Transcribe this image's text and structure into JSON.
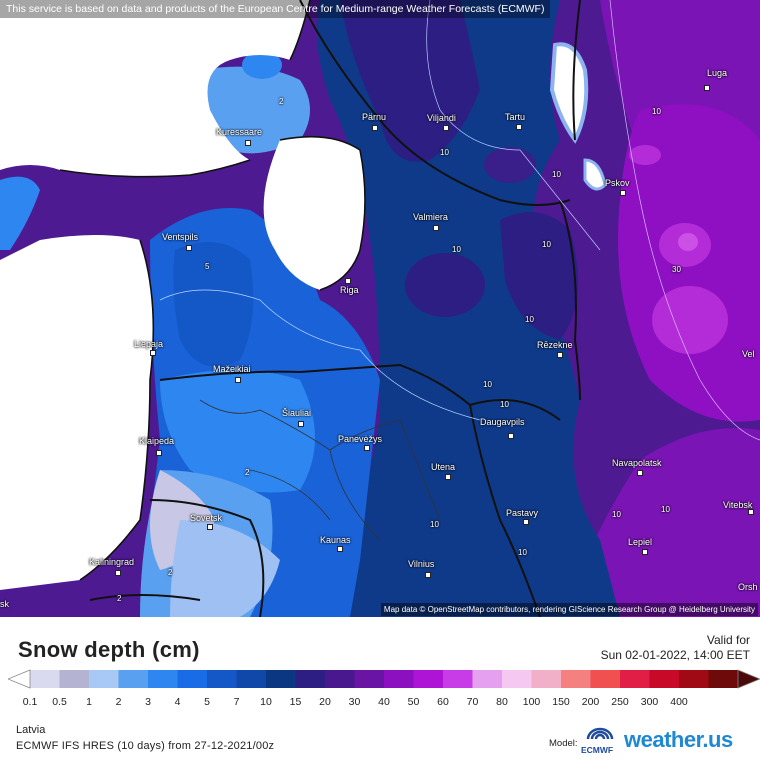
{
  "banner": "This service is based on data and products of the European Centre for Medium-range Weather Forecasts (ECMWF)",
  "attribution": "Map data © OpenStreetMap contributors, rendering GIScience Research Group @ Heidelberg University",
  "title": "Snow depth (cm)",
  "valid_label": "Valid for",
  "valid_time": "Sun 02-01-2022, 14:00 EET",
  "region": "Latvia",
  "model_run": "ECMWF IFS HRES (10 days) from 27-12-2021/00z",
  "model_label": "Model:",
  "ecmwf_text": "ECMWF",
  "brand": "weather.us",
  "legend": {
    "ticks": [
      "0.1",
      "0.5",
      "1",
      "2",
      "3",
      "4",
      "5",
      "7",
      "10",
      "15",
      "20",
      "30",
      "40",
      "50",
      "60",
      "70",
      "80",
      "100",
      "150",
      "200",
      "250",
      "300",
      "400"
    ],
    "colors": [
      "#d9d9f0",
      "#b4b4d2",
      "#a8c8f5",
      "#5aa0f0",
      "#2e86f0",
      "#1a6ce6",
      "#1458c8",
      "#0f48a8",
      "#0a3682",
      "#2c1e82",
      "#4a188e",
      "#6a14a4",
      "#8c10c0",
      "#ad14d6",
      "#c83ce8",
      "#e6a0f0",
      "#f4c8f0",
      "#f2b0c8",
      "#f48080",
      "#f05050",
      "#e01e46",
      "#c80a28",
      "#a00a14",
      "#6e0a0a"
    ],
    "low_arrow_color": "#ffffff",
    "high_arrow_color": "#4a0a0a"
  },
  "cities": [
    {
      "name": "Luga"
    },
    {
      "name": "Kuressaare"
    },
    {
      "name": "Pärnu"
    },
    {
      "name": "Viljandi"
    },
    {
      "name": "Tartu"
    },
    {
      "name": "Pskov"
    },
    {
      "name": "Valmiera"
    },
    {
      "name": "Ventspils"
    },
    {
      "name": "Riga"
    },
    {
      "name": "Liepaja"
    },
    {
      "name": "Rēzekne"
    },
    {
      "name": "Mažeikiai"
    },
    {
      "name": "Šiauliai"
    },
    {
      "name": "Klaipeda"
    },
    {
      "name": "Panevėžys"
    },
    {
      "name": "Daugavpils"
    },
    {
      "name": "Navapolatsk"
    },
    {
      "name": "Utena"
    },
    {
      "name": "Vitebsk"
    },
    {
      "name": "Sovetsk"
    },
    {
      "name": "Pastavy"
    },
    {
      "name": "Kaunas"
    },
    {
      "name": "Lepiel"
    },
    {
      "name": "Kaliningrad"
    },
    {
      "name": "Vilnius"
    },
    {
      "name": "Orsh"
    },
    {
      "name": "Vel"
    },
    {
      "name": "sk"
    }
  ],
  "contour_labels": [
    "10",
    "10",
    "10",
    "10",
    "10",
    "10",
    "10",
    "10",
    "10",
    "10",
    "10",
    "10",
    "2",
    "2",
    "2",
    "2",
    "5",
    "30"
  ]
}
